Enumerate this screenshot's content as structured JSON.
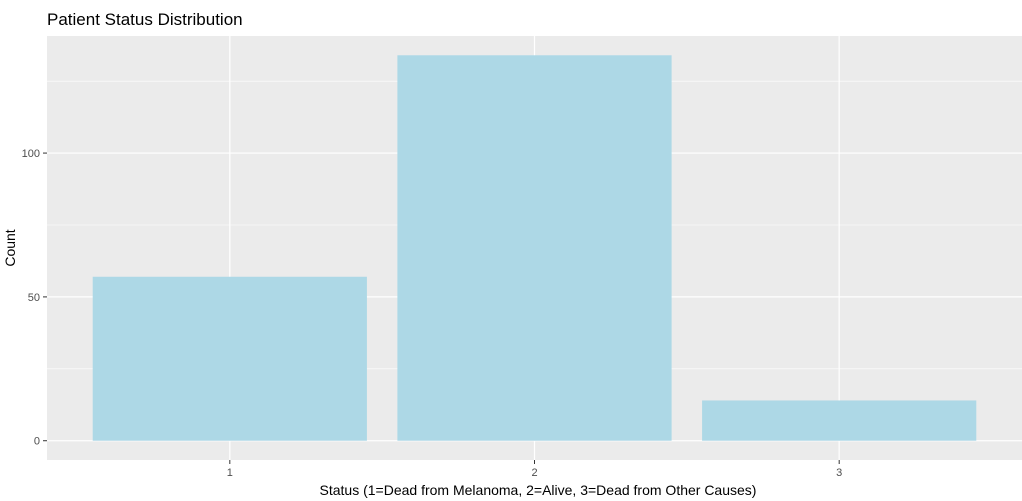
{
  "chart_data": {
    "type": "bar",
    "title": "Patient Status Distribution",
    "xlabel": "Status (1=Dead from Melanoma, 2=Alive, 3=Dead from Other Causes)",
    "ylabel": "Count",
    "categories": [
      "1",
      "2",
      "3"
    ],
    "values": [
      57,
      134,
      14
    ],
    "ylim": [
      -6.7,
      140.7
    ],
    "yticks": [
      0,
      50,
      100
    ],
    "grid": true,
    "bar_color": "#ADD8E6",
    "panel_color": "#EBEBEB",
    "grid_color": "#FFFFFF"
  }
}
